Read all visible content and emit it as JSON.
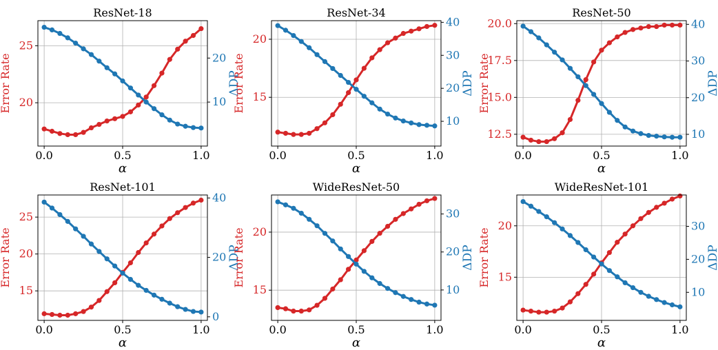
{
  "figure": {
    "colors": {
      "error_rate": "#d62728",
      "delta_dp": "#1f77b4",
      "grid": "#b0b0b0",
      "axes": "#000000"
    }
  },
  "chart_data": [
    {
      "type": "line",
      "title": "ResNet-18",
      "xlabel": "α",
      "ylabel_left": "Error Rate",
      "ylabel_right": "ΔDP",
      "xlim": [
        -0.04,
        1.04
      ],
      "ylim_left": [
        16.2,
        27.2
      ],
      "ylim_right": [
        0,
        28.5
      ],
      "xticks": [
        0.0,
        0.5,
        1.0
      ],
      "xtick_labels": [
        "0.0",
        "0.5",
        "1.0"
      ],
      "yticks_left": [
        20,
        25
      ],
      "ytick_labels_left": [
        "20",
        "25"
      ],
      "yticks_right": [
        10,
        20
      ],
      "ytick_labels_right": [
        "10",
        "20"
      ],
      "grid": true,
      "x": [
        0.0,
        0.05,
        0.1,
        0.15,
        0.2,
        0.25,
        0.3,
        0.35,
        0.4,
        0.45,
        0.5,
        0.55,
        0.6,
        0.65,
        0.7,
        0.75,
        0.8,
        0.85,
        0.9,
        0.95,
        1.0
      ],
      "series": [
        {
          "name": "Error Rate",
          "axis": "left",
          "values": [
            17.7,
            17.5,
            17.3,
            17.2,
            17.2,
            17.4,
            17.8,
            18.1,
            18.4,
            18.6,
            18.8,
            19.2,
            19.8,
            20.5,
            21.5,
            22.6,
            23.8,
            24.7,
            25.4,
            25.9,
            26.5
          ]
        },
        {
          "name": "ΔDP",
          "axis": "right",
          "values": [
            27.0,
            26.4,
            25.6,
            24.6,
            23.4,
            22.1,
            20.8,
            19.3,
            17.8,
            16.4,
            14.8,
            13.2,
            11.6,
            10.0,
            8.5,
            7.1,
            5.9,
            5.0,
            4.5,
            4.2,
            4.1
          ]
        }
      ]
    },
    {
      "type": "line",
      "title": "ResNet-34",
      "xlabel": "α",
      "ylabel_left": "Error Rate",
      "ylabel_right": "ΔDP",
      "xlim": [
        -0.04,
        1.04
      ],
      "ylim_left": [
        10.8,
        21.6
      ],
      "ylim_right": [
        2.5,
        40.5
      ],
      "xticks": [
        0.0,
        0.5,
        1.0
      ],
      "xtick_labels": [
        "0.0",
        "0.5",
        "1.0"
      ],
      "yticks_left": [
        15,
        20
      ],
      "ytick_labels_left": [
        "15",
        "20"
      ],
      "yticks_right": [
        10,
        20,
        30,
        40
      ],
      "ytick_labels_right": [
        "10",
        "20",
        "30",
        "40"
      ],
      "grid": true,
      "x": [
        0.0,
        0.05,
        0.1,
        0.15,
        0.2,
        0.25,
        0.3,
        0.35,
        0.4,
        0.45,
        0.5,
        0.55,
        0.6,
        0.65,
        0.7,
        0.75,
        0.8,
        0.85,
        0.9,
        0.95,
        1.0
      ],
      "series": [
        {
          "name": "Error Rate",
          "axis": "left",
          "values": [
            12.0,
            11.9,
            11.8,
            11.8,
            11.9,
            12.3,
            12.8,
            13.5,
            14.4,
            15.4,
            16.5,
            17.5,
            18.4,
            19.1,
            19.7,
            20.1,
            20.5,
            20.7,
            20.9,
            21.1,
            21.2
          ]
        },
        {
          "name": "ΔDP",
          "axis": "right",
          "values": [
            39.0,
            37.6,
            36.0,
            34.2,
            32.3,
            30.2,
            28.1,
            26.0,
            23.9,
            21.8,
            19.7,
            17.6,
            15.6,
            13.7,
            12.2,
            11.0,
            10.1,
            9.5,
            9.0,
            8.8,
            8.6
          ]
        }
      ]
    },
    {
      "type": "line",
      "title": "ResNet-50",
      "xlabel": "α",
      "ylabel_left": "Error Rate",
      "ylabel_right": "ΔDP",
      "xlim": [
        -0.04,
        1.04
      ],
      "ylim_left": [
        11.7,
        20.2
      ],
      "ylim_right": [
        6.8,
        41.0
      ],
      "xticks": [
        0.0,
        0.5,
        1.0
      ],
      "xtick_labels": [
        "0.0",
        "0.5",
        "1.0"
      ],
      "yticks_left": [
        12.5,
        15.0,
        17.5,
        20.0
      ],
      "ytick_labels_left": [
        "12.5",
        "15.0",
        "17.5",
        "20.0"
      ],
      "yticks_right": [
        10,
        20,
        30,
        40
      ],
      "ytick_labels_right": [
        "10",
        "20",
        "30",
        "40"
      ],
      "grid": true,
      "x": [
        0.0,
        0.05,
        0.1,
        0.15,
        0.2,
        0.25,
        0.3,
        0.35,
        0.4,
        0.45,
        0.5,
        0.55,
        0.6,
        0.65,
        0.7,
        0.75,
        0.8,
        0.85,
        0.9,
        0.95,
        1.0
      ],
      "series": [
        {
          "name": "Error Rate",
          "axis": "left",
          "values": [
            12.3,
            12.1,
            12.0,
            12.0,
            12.2,
            12.6,
            13.5,
            14.8,
            16.2,
            17.4,
            18.2,
            18.7,
            19.1,
            19.4,
            19.6,
            19.7,
            19.8,
            19.8,
            19.9,
            19.9,
            19.9
          ]
        },
        {
          "name": "ΔDP",
          "axis": "right",
          "values": [
            39.5,
            38.0,
            36.3,
            34.4,
            32.4,
            30.3,
            28.0,
            25.7,
            23.3,
            20.9,
            18.4,
            16.0,
            13.8,
            12.0,
            10.9,
            10.2,
            9.7,
            9.5,
            9.3,
            9.2,
            9.2
          ]
        }
      ]
    },
    {
      "type": "line",
      "title": "ResNet-101",
      "xlabel": "α",
      "ylabel_left": "Error Rate",
      "ylabel_right": "ΔDP",
      "xlim": [
        -0.04,
        1.04
      ],
      "ylim_left": [
        11.0,
        28.0
      ],
      "ylim_right": [
        -1.2,
        41.0
      ],
      "xticks": [
        0.0,
        0.5,
        1.0
      ],
      "xtick_labels": [
        "0.0",
        "0.5",
        "1.0"
      ],
      "yticks_left": [
        15,
        20,
        25
      ],
      "ytick_labels_left": [
        "15",
        "20",
        "25"
      ],
      "yticks_right": [
        0,
        20,
        40
      ],
      "ytick_labels_right": [
        "0",
        "20",
        "40"
      ],
      "grid": true,
      "x": [
        0.0,
        0.05,
        0.1,
        0.15,
        0.2,
        0.25,
        0.3,
        0.35,
        0.4,
        0.45,
        0.5,
        0.55,
        0.6,
        0.65,
        0.7,
        0.75,
        0.8,
        0.85,
        0.9,
        0.95,
        1.0
      ],
      "series": [
        {
          "name": "Error Rate",
          "axis": "left",
          "values": [
            11.9,
            11.8,
            11.7,
            11.7,
            11.9,
            12.2,
            12.8,
            13.7,
            14.9,
            16.1,
            17.5,
            18.8,
            20.2,
            21.5,
            22.7,
            23.8,
            24.8,
            25.6,
            26.3,
            26.9,
            27.3
          ]
        },
        {
          "name": "ΔDP",
          "axis": "right",
          "values": [
            38.6,
            36.6,
            34.4,
            32.1,
            29.6,
            27.1,
            24.5,
            22.0,
            19.5,
            17.1,
            14.7,
            12.6,
            10.6,
            8.9,
            7.3,
            5.9,
            4.6,
            3.4,
            2.5,
            1.8,
            1.6
          ]
        }
      ]
    },
    {
      "type": "line",
      "title": "WideResNet-50",
      "xlabel": "α",
      "ylabel_left": "Error Rate",
      "ylabel_right": "ΔDP",
      "xlim": [
        -0.04,
        1.04
      ],
      "ylim_left": [
        12.4,
        23.2
      ],
      "ylim_right": [
        2.0,
        35.0
      ],
      "xticks": [
        0.0,
        0.5,
        1.0
      ],
      "xtick_labels": [
        "0.0",
        "0.5",
        "1.0"
      ],
      "yticks_left": [
        15,
        20
      ],
      "ytick_labels_left": [
        "15",
        "20"
      ],
      "yticks_right": [
        10,
        20,
        30
      ],
      "ytick_labels_right": [
        "10",
        "20",
        "30"
      ],
      "grid": true,
      "x": [
        0.0,
        0.05,
        0.1,
        0.15,
        0.2,
        0.25,
        0.3,
        0.35,
        0.4,
        0.45,
        0.5,
        0.55,
        0.6,
        0.65,
        0.7,
        0.75,
        0.8,
        0.85,
        0.9,
        0.95,
        1.0
      ],
      "series": [
        {
          "name": "Error Rate",
          "axis": "left",
          "values": [
            13.5,
            13.4,
            13.2,
            13.2,
            13.3,
            13.7,
            14.3,
            15.1,
            15.9,
            16.8,
            17.6,
            18.4,
            19.2,
            19.9,
            20.5,
            21.1,
            21.6,
            22.0,
            22.4,
            22.7,
            22.9
          ]
        },
        {
          "name": "ΔDP",
          "axis": "right",
          "values": [
            33.2,
            32.4,
            31.5,
            30.2,
            28.6,
            26.9,
            24.9,
            22.9,
            20.8,
            18.8,
            16.8,
            14.9,
            13.2,
            11.7,
            10.4,
            9.3,
            8.3,
            7.5,
            6.8,
            6.3,
            6.0
          ]
        }
      ]
    },
    {
      "type": "line",
      "title": "WideResNet-101",
      "xlabel": "α",
      "ylabel_left": "Error Rate",
      "ylabel_right": "ΔDP",
      "xlim": [
        -0.04,
        1.04
      ],
      "ylim_left": [
        10.8,
        23.0
      ],
      "ylim_right": [
        1.5,
        39.5
      ],
      "xticks": [
        0.0,
        0.5,
        1.0
      ],
      "xtick_labels": [
        "0.0",
        "0.5",
        "1.0"
      ],
      "yticks_left": [
        15,
        20
      ],
      "ytick_labels_left": [
        "15",
        "20"
      ],
      "yticks_right": [
        10,
        20,
        30
      ],
      "ytick_labels_right": [
        "10",
        "20",
        "30"
      ],
      "grid": true,
      "x": [
        0.0,
        0.05,
        0.1,
        0.15,
        0.2,
        0.25,
        0.3,
        0.35,
        0.4,
        0.45,
        0.5,
        0.55,
        0.6,
        0.65,
        0.7,
        0.75,
        0.8,
        0.85,
        0.9,
        0.95,
        1.0
      ],
      "series": [
        {
          "name": "Error Rate",
          "axis": "left",
          "values": [
            11.8,
            11.7,
            11.6,
            11.6,
            11.7,
            12.0,
            12.6,
            13.4,
            14.3,
            15.3,
            16.4,
            17.4,
            18.4,
            19.2,
            20.0,
            20.7,
            21.3,
            21.8,
            22.2,
            22.6,
            22.9
          ]
        },
        {
          "name": "ΔDP",
          "axis": "right",
          "values": [
            37.5,
            36.1,
            34.5,
            32.9,
            31.1,
            29.2,
            27.2,
            25.1,
            22.9,
            20.7,
            18.6,
            16.6,
            14.7,
            12.9,
            11.4,
            10.0,
            8.8,
            7.8,
            6.9,
            6.2,
            5.6
          ]
        }
      ]
    }
  ]
}
